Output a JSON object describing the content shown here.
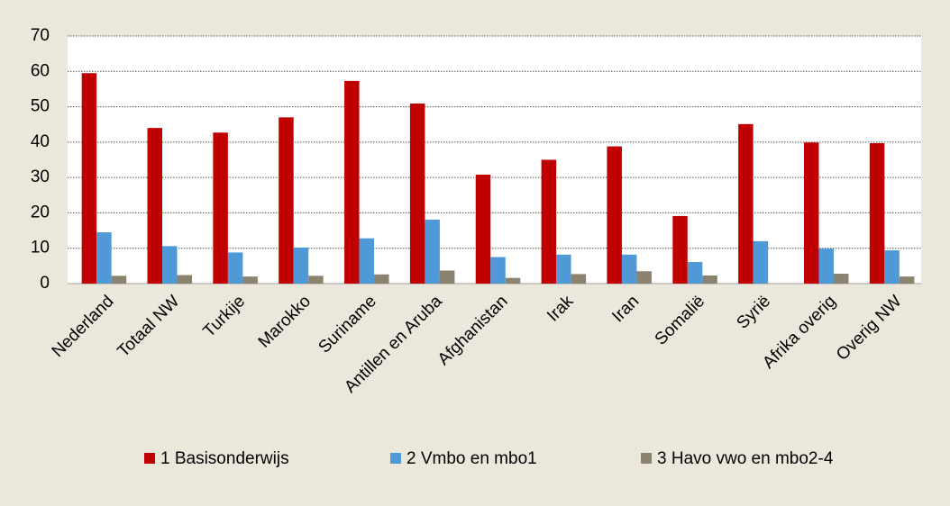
{
  "chart_data": {
    "type": "bar",
    "categories": [
      "Nederland",
      "Totaal NW",
      "Turkije",
      "Marokko",
      "Suriname",
      "Antillen en Aruba",
      "Afghanistan",
      "Irak",
      "Iran",
      "Somalië",
      "Syrië",
      "Afrika overig",
      "Overig NW"
    ],
    "series": [
      {
        "name": "1 Basisonderwijs",
        "color": "#c00000",
        "values": [
          59.5,
          44,
          42.7,
          47,
          57.3,
          50.9,
          30.8,
          35,
          38.8,
          19.1,
          45.1,
          39.9,
          39.7
        ]
      },
      {
        "name": "2 Vmbo en mbo1",
        "color": "#4f9ad6",
        "values": [
          14.5,
          10.6,
          8.8,
          10.2,
          12.8,
          18.1,
          7.5,
          8.2,
          8.2,
          6.1,
          12,
          9.9,
          9.4
        ]
      },
      {
        "name": "3 Havo vwo en mbo2-4",
        "color": "#8b8270",
        "values": [
          2.2,
          2.4,
          2.0,
          2.2,
          2.6,
          3.7,
          1.6,
          2.7,
          3.5,
          2.3,
          null,
          2.8,
          2.0
        ]
      }
    ],
    "ylim": [
      0,
      70
    ],
    "yticks": [
      0,
      10,
      20,
      30,
      40,
      50,
      60,
      70
    ],
    "grid": true,
    "legend": "bottom"
  }
}
